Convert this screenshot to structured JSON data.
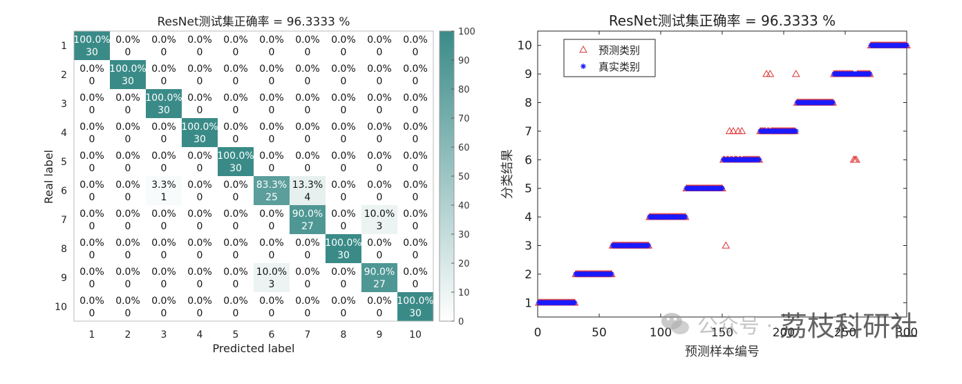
{
  "chart_data": [
    {
      "type": "heatmap",
      "title": "ResNet测试集正确率 = 96.3333 %",
      "xlabel": "Predicted label",
      "ylabel": "Real label",
      "classes": [
        "1",
        "2",
        "3",
        "4",
        "5",
        "6",
        "7",
        "8",
        "9",
        "10"
      ],
      "counts": [
        [
          30,
          0,
          0,
          0,
          0,
          0,
          0,
          0,
          0,
          0
        ],
        [
          0,
          30,
          0,
          0,
          0,
          0,
          0,
          0,
          0,
          0
        ],
        [
          0,
          0,
          30,
          0,
          0,
          0,
          0,
          0,
          0,
          0
        ],
        [
          0,
          0,
          0,
          30,
          0,
          0,
          0,
          0,
          0,
          0
        ],
        [
          0,
          0,
          0,
          0,
          30,
          0,
          0,
          0,
          0,
          0
        ],
        [
          0,
          0,
          1,
          0,
          0,
          25,
          4,
          0,
          0,
          0
        ],
        [
          0,
          0,
          0,
          0,
          0,
          0,
          27,
          0,
          3,
          0
        ],
        [
          0,
          0,
          0,
          0,
          0,
          0,
          0,
          30,
          0,
          0
        ],
        [
          0,
          0,
          0,
          0,
          0,
          3,
          0,
          0,
          27,
          0
        ],
        [
          0,
          0,
          0,
          0,
          0,
          0,
          0,
          0,
          0,
          30
        ]
      ],
      "percents": [
        [
          "100.0%",
          "0.0%",
          "0.0%",
          "0.0%",
          "0.0%",
          "0.0%",
          "0.0%",
          "0.0%",
          "0.0%",
          "0.0%"
        ],
        [
          "0.0%",
          "100.0%",
          "0.0%",
          "0.0%",
          "0.0%",
          "0.0%",
          "0.0%",
          "0.0%",
          "0.0%",
          "0.0%"
        ],
        [
          "0.0%",
          "0.0%",
          "100.0%",
          "0.0%",
          "0.0%",
          "0.0%",
          "0.0%",
          "0.0%",
          "0.0%",
          "0.0%"
        ],
        [
          "0.0%",
          "0.0%",
          "0.0%",
          "100.0%",
          "0.0%",
          "0.0%",
          "0.0%",
          "0.0%",
          "0.0%",
          "0.0%"
        ],
        [
          "0.0%",
          "0.0%",
          "0.0%",
          "0.0%",
          "100.0%",
          "0.0%",
          "0.0%",
          "0.0%",
          "0.0%",
          "0.0%"
        ],
        [
          "0.0%",
          "0.0%",
          "3.3%",
          "0.0%",
          "0.0%",
          "83.3%",
          "13.3%",
          "0.0%",
          "0.0%",
          "0.0%"
        ],
        [
          "0.0%",
          "0.0%",
          "0.0%",
          "0.0%",
          "0.0%",
          "0.0%",
          "90.0%",
          "0.0%",
          "10.0%",
          "0.0%"
        ],
        [
          "0.0%",
          "0.0%",
          "0.0%",
          "0.0%",
          "0.0%",
          "0.0%",
          "0.0%",
          "100.0%",
          "0.0%",
          "0.0%"
        ],
        [
          "0.0%",
          "0.0%",
          "0.0%",
          "0.0%",
          "0.0%",
          "10.0%",
          "0.0%",
          "0.0%",
          "90.0%",
          "0.0%"
        ],
        [
          "0.0%",
          "0.0%",
          "0.0%",
          "0.0%",
          "0.0%",
          "0.0%",
          "0.0%",
          "0.0%",
          "0.0%",
          "100.0%"
        ]
      ],
      "colorbar": {
        "range": [
          0,
          100
        ],
        "ticks": [
          "0",
          "10",
          "20",
          "30",
          "40",
          "50",
          "60",
          "70",
          "80",
          "90",
          "100"
        ],
        "color_low": "#ffffff",
        "color_high": "#3a8b88"
      }
    },
    {
      "type": "scatter",
      "title": "ResNet测试集正确率 = 96.3333 %",
      "xlabel": "预测样本编号",
      "ylabel": "分类结果",
      "xlim": [
        0,
        300
      ],
      "ylim": [
        0.5,
        10.5
      ],
      "xticks": [
        "0",
        "50",
        "100",
        "150",
        "200",
        "250",
        "300"
      ],
      "yticks": [
        "1",
        "2",
        "3",
        "4",
        "5",
        "6",
        "7",
        "8",
        "9",
        "10"
      ],
      "legend": {
        "placement": "top-left",
        "entries": [
          "预测类别",
          "真实类别"
        ]
      },
      "series": [
        {
          "name": "预测类别",
          "marker": "triangle",
          "color": "#e03030"
        },
        {
          "name": "真实类别",
          "marker": "asterisk",
          "color": "#1a1aff"
        }
      ],
      "samples_per_class": 30,
      "misclassified": [
        {
          "x": 153,
          "pred": 3
        },
        {
          "x": 156,
          "pred": 7
        },
        {
          "x": 163,
          "pred": 7
        },
        {
          "x": 166,
          "pred": 7
        },
        {
          "x": 189,
          "pred": 9
        },
        {
          "x": 210,
          "pred": 9
        },
        {
          "x": 257,
          "pred": 6
        },
        {
          "x": 258,
          "pred": 6
        },
        {
          "x": 259,
          "pred": 6
        },
        {
          "x": 159,
          "pred": 7
        },
        {
          "x": 186,
          "pred": 9
        }
      ]
    }
  ],
  "watermark": {
    "small_text": "公众号 ·",
    "big_text": "荔枝科研社",
    "icon": "wechat-icon"
  }
}
